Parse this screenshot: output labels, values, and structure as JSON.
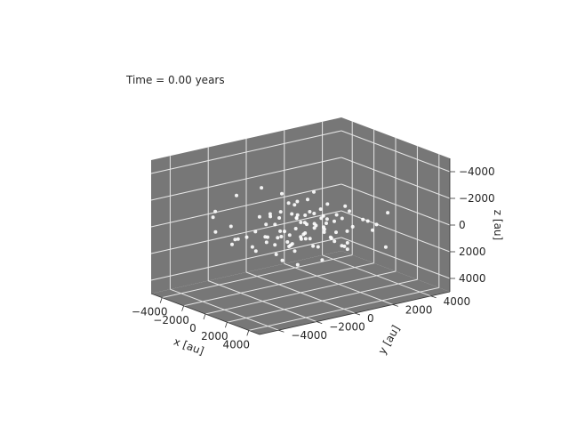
{
  "chart_data": {
    "type": "scatter3d",
    "time_label": "Time =  0.00 years",
    "xlabel": "x [au]",
    "ylabel": "y [au]",
    "zlabel": "z [au]",
    "xlim": [
      -5000,
      5000
    ],
    "ylim": [
      -5000,
      5000
    ],
    "zlim": [
      -5000,
      5000
    ],
    "xticks": [
      {
        "value": -4000,
        "label": "−4000"
      },
      {
        "value": -2000,
        "label": "−2000"
      },
      {
        "value": 0,
        "label": "0"
      },
      {
        "value": 2000,
        "label": "2000"
      },
      {
        "value": 4000,
        "label": "4000"
      }
    ],
    "yticks": [
      {
        "value": -4000,
        "label": "−4000"
      },
      {
        "value": -2000,
        "label": "−2000"
      },
      {
        "value": 0,
        "label": "0"
      },
      {
        "value": 2000,
        "label": "2000"
      },
      {
        "value": 4000,
        "label": "4000"
      }
    ],
    "zticks": [
      {
        "value": -4000,
        "label": "−4000"
      },
      {
        "value": -2000,
        "label": "−2000"
      },
      {
        "value": 0,
        "label": "0"
      },
      {
        "value": 2000,
        "label": "2000"
      },
      {
        "value": 4000,
        "label": "4000"
      }
    ],
    "grid": true,
    "colors": {
      "pane": "#777777",
      "grid": "#e6e6e6",
      "points": "#ffffff",
      "axis_edge": "#333333"
    },
    "points": [
      [
        -3800,
        -1200,
        -1500
      ],
      [
        -3500,
        400,
        300
      ],
      [
        -3300,
        -2600,
        -900
      ],
      [
        -3000,
        1500,
        800
      ],
      [
        -2900,
        -400,
        -2100
      ],
      [
        -2700,
        2600,
        400
      ],
      [
        -2600,
        -1800,
        1200
      ],
      [
        -2500,
        800,
        -700
      ],
      [
        -2400,
        -3100,
        200
      ],
      [
        -2300,
        300,
        1600
      ],
      [
        -2200,
        -900,
        -300
      ],
      [
        -2100,
        1900,
        -1300
      ],
      [
        -2000,
        -2300,
        900
      ],
      [
        -1900,
        100,
        -1800
      ],
      [
        -1800,
        2800,
        1100
      ],
      [
        -1700,
        -1400,
        500
      ],
      [
        -1600,
        600,
        -900
      ],
      [
        -1500,
        -2800,
        -400
      ],
      [
        -1400,
        1300,
        1800
      ],
      [
        -1300,
        -600,
        100
      ],
      [
        -1200,
        2100,
        -600
      ],
      [
        -1100,
        -1900,
        1300
      ],
      [
        -1000,
        400,
        -1400
      ],
      [
        -950,
        -300,
        600
      ],
      [
        -900,
        1600,
        200
      ],
      [
        -850,
        -1100,
        -800
      ],
      [
        -800,
        700,
        1000
      ],
      [
        -750,
        -2400,
        300
      ],
      [
        -700,
        200,
        -300
      ],
      [
        -650,
        1100,
        700
      ],
      [
        -600,
        -700,
        -1100
      ],
      [
        -550,
        2500,
        400
      ],
      [
        -500,
        -1500,
        900
      ],
      [
        -450,
        500,
        -500
      ],
      [
        -400,
        -200,
        1400
      ],
      [
        -350,
        1400,
        -200
      ],
      [
        -300,
        -900,
        200
      ],
      [
        -250,
        300,
        800
      ],
      [
        -200,
        -1700,
        -600
      ],
      [
        -150,
        900,
        300
      ],
      [
        -100,
        -400,
        -1000
      ],
      [
        -50,
        1900,
        1100
      ],
      [
        0,
        -1200,
        500
      ],
      [
        50,
        200,
        -200
      ],
      [
        100,
        1200,
        600
      ],
      [
        150,
        -600,
        1200
      ],
      [
        200,
        600,
        -800
      ],
      [
        250,
        -2000,
        100
      ],
      [
        300,
        100,
        900
      ],
      [
        350,
        1700,
        -400
      ],
      [
        400,
        -800,
        300
      ],
      [
        450,
        400,
        1500
      ],
      [
        500,
        -1400,
        -1200
      ],
      [
        550,
        900,
        200
      ],
      [
        600,
        -300,
        700
      ],
      [
        650,
        2200,
        -600
      ],
      [
        700,
        -1000,
        1000
      ],
      [
        750,
        300,
        -300
      ],
      [
        800,
        -1800,
        600
      ],
      [
        850,
        1300,
        1300
      ],
      [
        900,
        -500,
        -700
      ],
      [
        950,
        700,
        400
      ],
      [
        1000,
        -2300,
        -200
      ],
      [
        1100,
        1000,
        900
      ],
      [
        1200,
        -200,
        -1500
      ],
      [
        1300,
        2000,
        300
      ],
      [
        1400,
        -1100,
        1100
      ],
      [
        1500,
        500,
        -500
      ],
      [
        1600,
        -1600,
        200
      ],
      [
        1700,
        1500,
        1700
      ],
      [
        1800,
        -700,
        -900
      ],
      [
        1900,
        2700,
        600
      ],
      [
        2000,
        -2100,
        1300
      ],
      [
        2100,
        200,
        -1100
      ],
      [
        2200,
        1200,
        100
      ],
      [
        2300,
        -1300,
        -300
      ],
      [
        2400,
        800,
        1000
      ],
      [
        2500,
        -2700,
        500
      ],
      [
        2600,
        1800,
        -700
      ],
      [
        2700,
        -400,
        1600
      ],
      [
        2800,
        2400,
        -200
      ],
      [
        2900,
        -1900,
        -1300
      ],
      [
        3000,
        600,
        800
      ],
      [
        3200,
        -900,
        300
      ],
      [
        3400,
        1600,
        -900
      ],
      [
        3600,
        -2200,
        1100
      ],
      [
        3800,
        300,
        200
      ],
      [
        4000,
        -700,
        -600
      ],
      [
        -3200,
        2200,
        -300
      ],
      [
        -2800,
        -2000,
        1600
      ],
      [
        -1500,
        3200,
        0
      ],
      [
        1500,
        -3200,
        400
      ],
      [
        2600,
        3100,
        -800
      ],
      [
        -3600,
        1900,
        900
      ],
      [
        3300,
        2600,
        1400
      ],
      [
        -2100,
        -3400,
        -1100
      ]
    ]
  }
}
